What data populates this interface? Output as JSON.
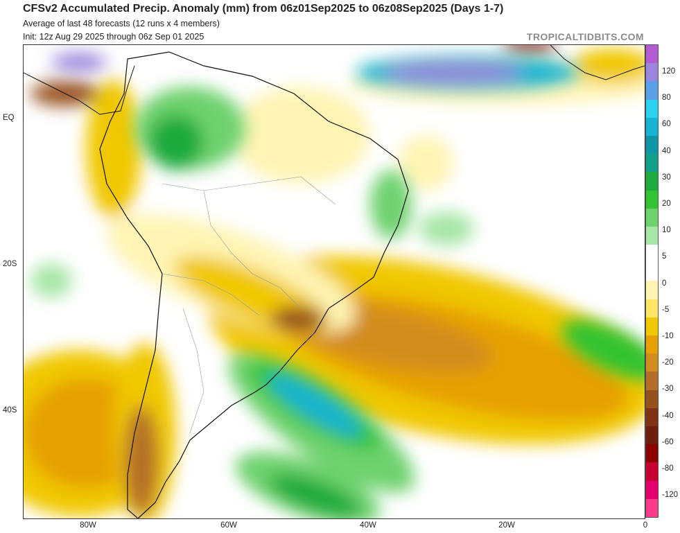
{
  "header": {
    "title": "CFSv2 Accumulated Precip. Anomaly (mm) from 06z01Sep2025 to 06z08Sep2025 (Days 1-7)",
    "subtitle1": "Average of last 48 forecasts (12 runs x 4 members)",
    "subtitle2": "Init: 12z Aug 29 2025 through 06z Sep 01 2025",
    "brand": "TROPICALTIDBITS.COM"
  },
  "map": {
    "lat_labels": [
      "EQ",
      "20S",
      "40S"
    ],
    "lon_labels": [
      "80W",
      "60W",
      "40W",
      "20W",
      "0"
    ]
  },
  "colorbar": {
    "labels": [
      "120",
      "80",
      "60",
      "40",
      "30",
      "20",
      "10",
      "5",
      "0",
      "-5",
      "-10",
      "-20",
      "-30",
      "-40",
      "-60",
      "-80",
      "-120"
    ],
    "colors": [
      "#b45ad2",
      "#9a86dc",
      "#5aa0e6",
      "#2ad2f0",
      "#16b4d2",
      "#0e96a6",
      "#12a08c",
      "#1eaa3c",
      "#32c332",
      "#6ed26e",
      "#a8e6a8",
      "#ffffff",
      "#ffffff",
      "#fff4b4",
      "#ffe664",
      "#f0c800",
      "#e6a000",
      "#d28c1e",
      "#b46e28",
      "#96501e",
      "#823214",
      "#6e1e0a",
      "#8c0000",
      "#c80032",
      "#e6006e",
      "#ff3c8c"
    ]
  }
}
